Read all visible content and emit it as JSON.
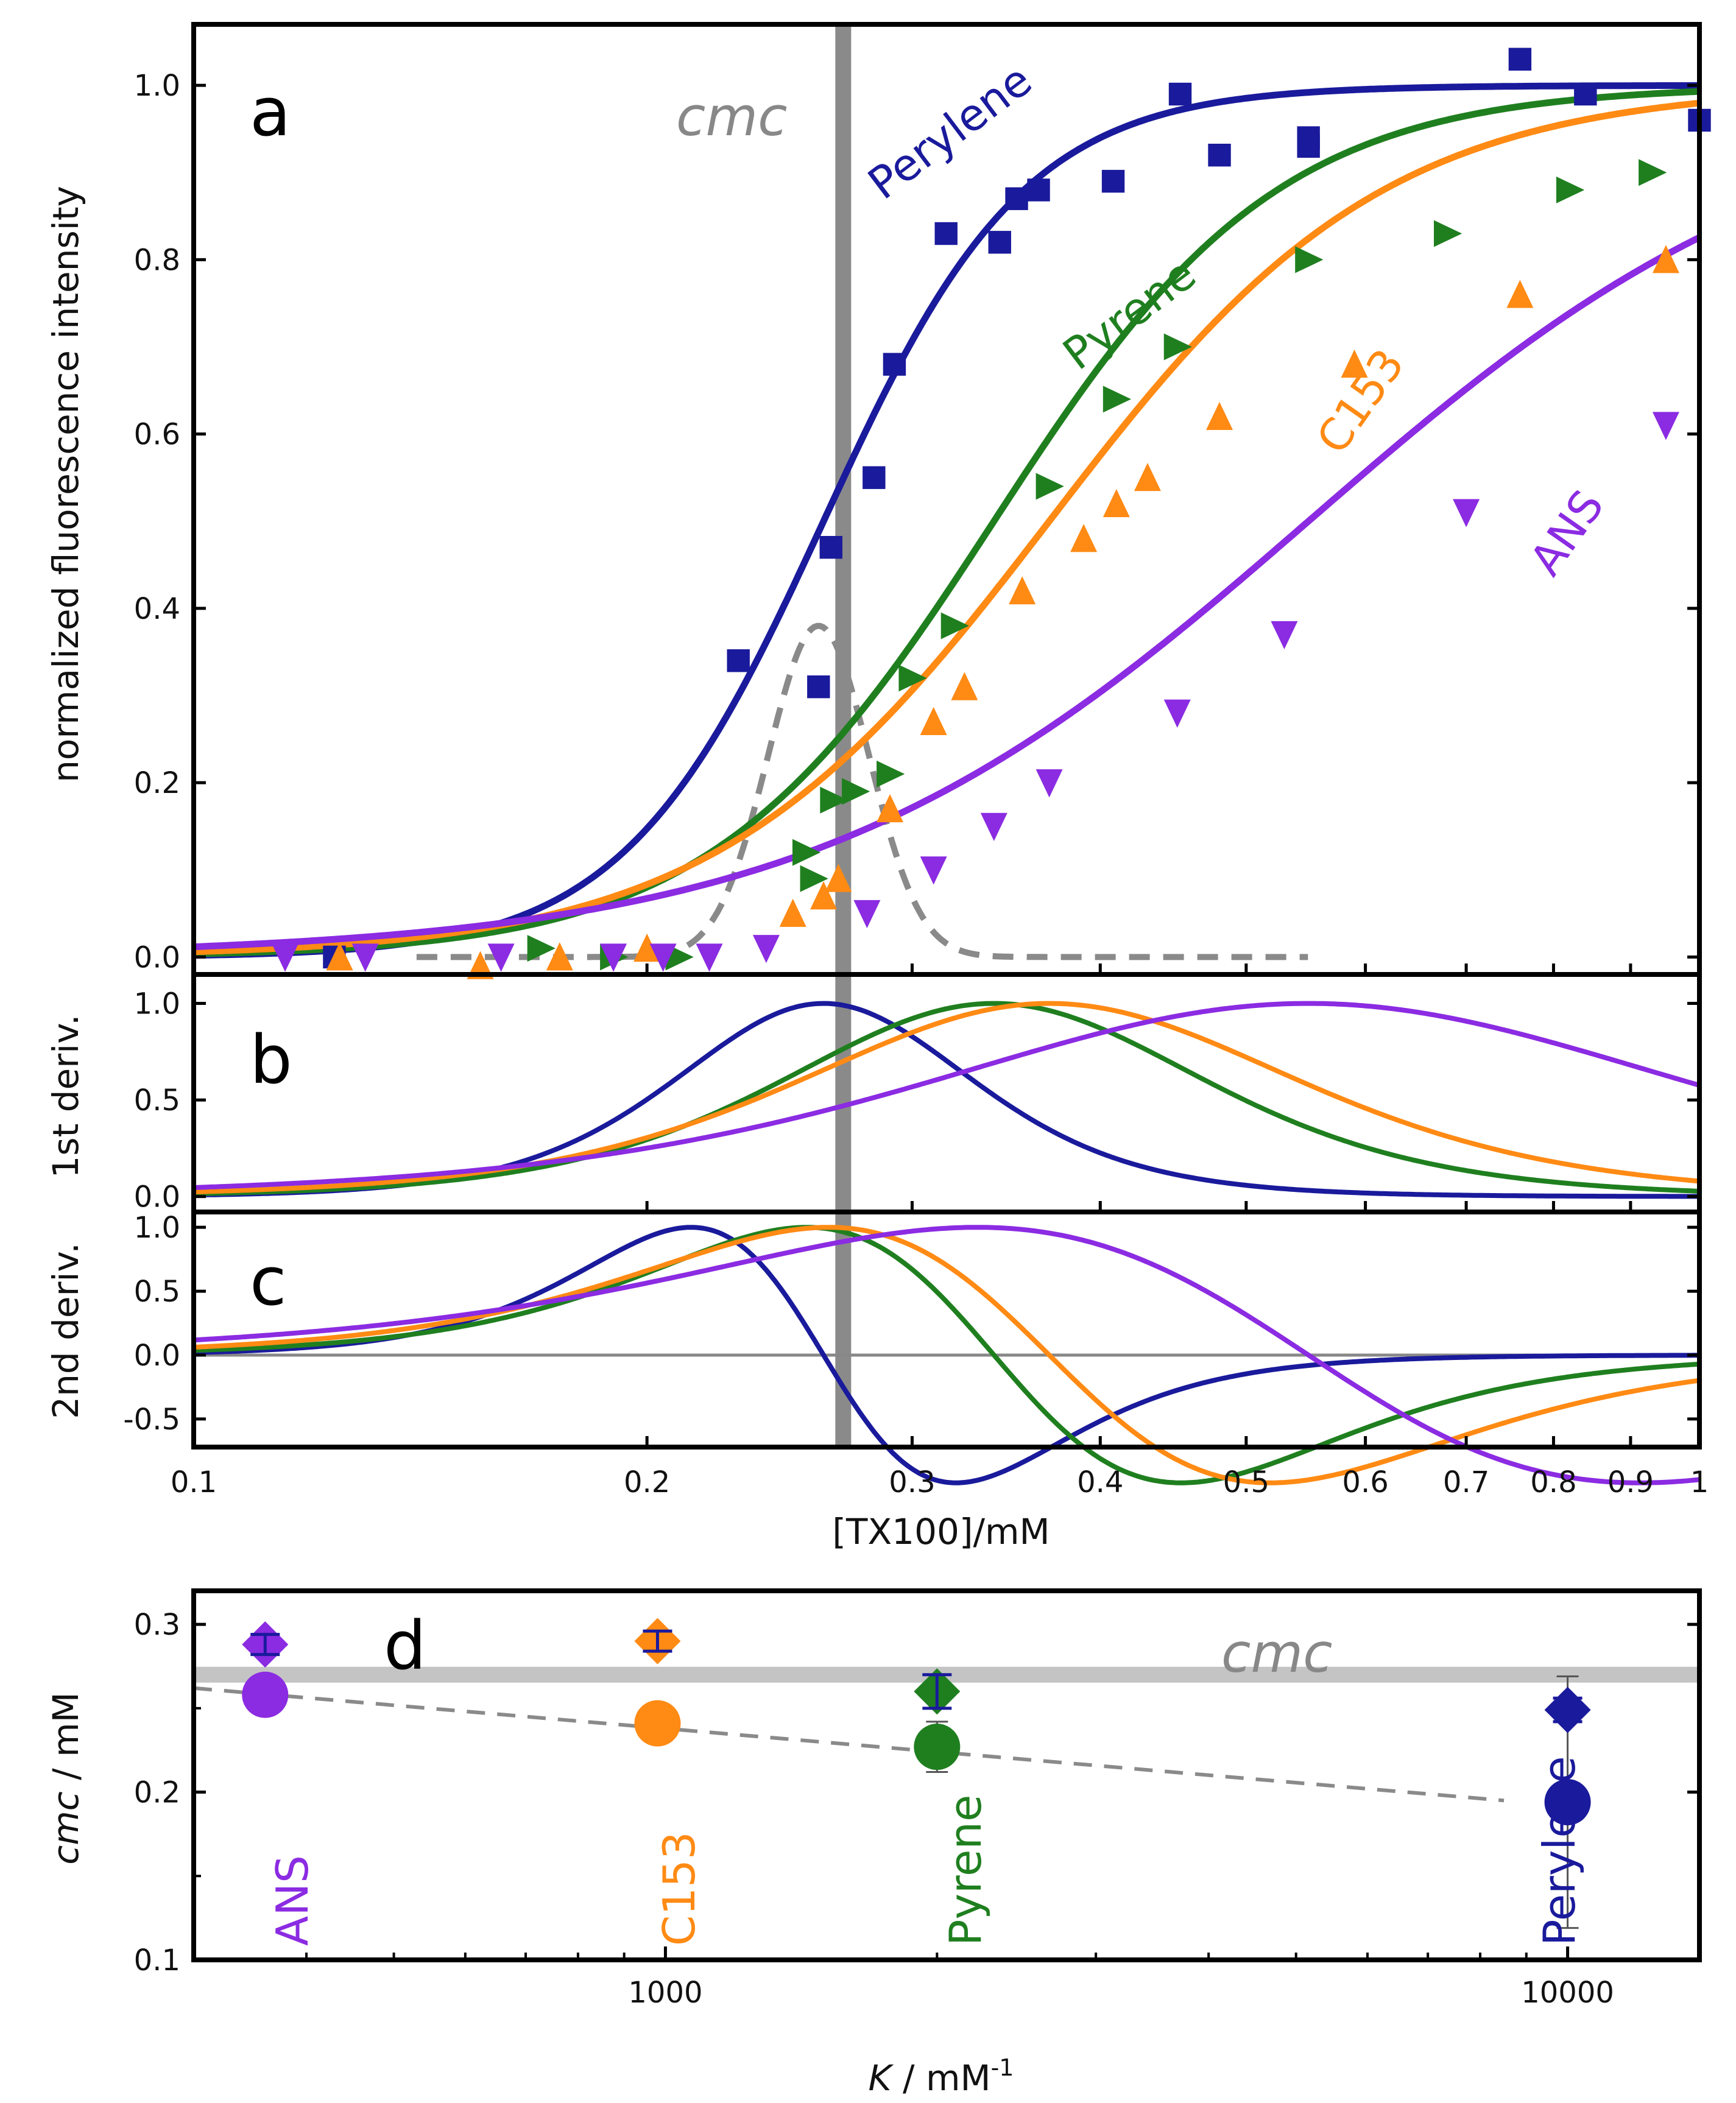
{
  "colors": {
    "Perylene": "#1a1a9c",
    "Pyrene": "#1f7f1f",
    "C153": "#ff8a14",
    "ANS": "#8b2be2",
    "cmc_line": "#8a8a8a",
    "cmc_band": "#c4c4c4",
    "dashed": "#8a8a8a"
  },
  "chart_data": [
    {
      "panel": "a",
      "type": "scatter",
      "x_scale": "log",
      "xlim": [
        0.1,
        1
      ],
      "ylim": [
        -0.02,
        1.07
      ],
      "ylabel": "normalized fluorescence intensity",
      "y_ticks": [
        "0.0",
        "0.2",
        "0.4",
        "0.6",
        "0.8",
        "1.0"
      ],
      "cmc_label": "cmc",
      "cmc_value": 0.27,
      "series": [
        {
          "name": "Perylene",
          "label": "Perylene",
          "marker": "square",
          "fit": {
            "x0": 0.262,
            "p": 6.5
          },
          "points": [
            [
              0.124,
              0.0
            ],
            [
              0.23,
              0.34
            ],
            [
              0.26,
              0.31
            ],
            [
              0.265,
              0.47
            ],
            [
              0.283,
              0.55
            ],
            [
              0.292,
              0.68
            ],
            [
              0.316,
              0.83
            ],
            [
              0.343,
              0.82
            ],
            [
              0.352,
              0.87
            ],
            [
              0.364,
              0.88
            ],
            [
              0.408,
              0.89
            ],
            [
              0.452,
              0.99
            ],
            [
              0.48,
              0.92
            ],
            [
              0.55,
              0.93
            ],
            [
              0.55,
              0.94
            ],
            [
              0.76,
              1.03
            ],
            [
              0.84,
              0.99
            ],
            [
              1.0,
              0.96
            ]
          ]
        },
        {
          "name": "Pyrene",
          "label": "Pyrene",
          "marker": "triangle-right",
          "fit": {
            "x0": 0.34,
            "p": 4.6
          },
          "points": [
            [
              0.17,
              0.01
            ],
            [
              0.19,
              0.0
            ],
            [
              0.21,
              0.0
            ],
            [
              0.255,
              0.12
            ],
            [
              0.258,
              0.09
            ],
            [
              0.266,
              0.18
            ],
            [
              0.275,
              0.19
            ],
            [
              0.29,
              0.21
            ],
            [
              0.3,
              0.32
            ],
            [
              0.32,
              0.38
            ],
            [
              0.37,
              0.54
            ],
            [
              0.41,
              0.64
            ],
            [
              0.45,
              0.7
            ],
            [
              0.55,
              0.8
            ],
            [
              0.68,
              0.83
            ],
            [
              0.82,
              0.88
            ],
            [
              0.93,
              0.9
            ]
          ]
        },
        {
          "name": "C153",
          "label": "C153",
          "marker": "triangle-up",
          "fit": {
            "x0": 0.37,
            "p": 3.9
          },
          "points": [
            [
              0.125,
              0.0
            ],
            [
              0.155,
              -0.01
            ],
            [
              0.175,
              0.0
            ],
            [
              0.2,
              0.01
            ],
            [
              0.25,
              0.05
            ],
            [
              0.262,
              0.07
            ],
            [
              0.268,
              0.09
            ],
            [
              0.29,
              0.17
            ],
            [
              0.31,
              0.27
            ],
            [
              0.325,
              0.31
            ],
            [
              0.355,
              0.42
            ],
            [
              0.39,
              0.48
            ],
            [
              0.41,
              0.52
            ],
            [
              0.43,
              0.55
            ],
            [
              0.48,
              0.62
            ],
            [
              0.59,
              0.68
            ],
            [
              0.76,
              0.76
            ],
            [
              0.95,
              0.8
            ]
          ]
        },
        {
          "name": "ANS",
          "label": "ANS",
          "marker": "triangle-down",
          "fit": {
            "x0": 0.55,
            "p": 2.6
          },
          "points": [
            [
              0.115,
              0.0
            ],
            [
              0.13,
              0.0
            ],
            [
              0.16,
              0.0
            ],
            [
              0.19,
              0.0
            ],
            [
              0.205,
              0.0
            ],
            [
              0.22,
              0.0
            ],
            [
              0.24,
              0.01
            ],
            [
              0.28,
              0.05
            ],
            [
              0.31,
              0.1
            ],
            [
              0.34,
              0.15
            ],
            [
              0.37,
              0.2
            ],
            [
              0.45,
              0.28
            ],
            [
              0.53,
              0.37
            ],
            [
              0.7,
              0.51
            ],
            [
              0.95,
              0.61
            ]
          ]
        }
      ],
      "dashed_curve": {
        "peak": 0.38,
        "center": 0.26,
        "width": 0.17,
        "xmin": 0.14,
        "xmax": 0.55
      }
    },
    {
      "panel": "b",
      "type": "line",
      "x_scale": "log",
      "xlim": [
        0.1,
        1
      ],
      "ylim": [
        -0.08,
        1.15
      ],
      "ylabel": "1st deriv.",
      "y_ticks": [
        "0.0",
        "0.5",
        "1.0"
      ],
      "series": [
        "Perylene",
        "Pyrene",
        "C153",
        "ANS"
      ]
    },
    {
      "panel": "c",
      "type": "line",
      "x_scale": "log",
      "xlim": [
        0.1,
        1
      ],
      "ylim": [
        -0.72,
        1.12
      ],
      "ylabel": "2nd deriv.",
      "y_ticks": [
        "-0.5",
        "0.0",
        "0.5",
        "1.0"
      ],
      "x_ticks": [
        "0.1",
        "0.2",
        "0.3",
        "0.4",
        "0.5",
        "0.6",
        "0.7",
        "0.8",
        "0.9",
        "1"
      ],
      "xlabel": "[TX100]/mM",
      "series": [
        "Perylene",
        "Pyrene",
        "C153",
        "ANS"
      ]
    },
    {
      "panel": "d",
      "type": "scatter",
      "x_scale": "log",
      "xlim": [
        300,
        14000
      ],
      "ylim": [
        0.1,
        0.32
      ],
      "xlabel_italic": "K",
      "xlabel_rest": " / mM",
      "xlabel_sup": "-1",
      "ylabel_italic": "cmc",
      "ylabel_rest": " / mM",
      "x_ticks": [
        "1000",
        "10000"
      ],
      "y_ticks": [
        "0.1",
        "0.2",
        "0.3"
      ],
      "cmc_label": "cmc",
      "cmc_value": 0.27,
      "trend_line": [
        [
          300,
          0.262
        ],
        [
          8500,
          0.195
        ]
      ],
      "points": [
        {
          "name": "ANS",
          "label": "ANS",
          "K": 360,
          "diamond": 0.288,
          "diamond_err": 0.006,
          "circle": 0.258,
          "circle_err": 0.0
        },
        {
          "name": "C153",
          "label": "C153",
          "K": 980,
          "diamond": 0.29,
          "diamond_err": 0.006,
          "circle": 0.241,
          "circle_err": 0.008
        },
        {
          "name": "Pyrene",
          "label": "Pyrene",
          "K": 2000,
          "diamond": 0.26,
          "diamond_err": 0.01,
          "circle": 0.227,
          "circle_err": 0.015
        },
        {
          "name": "Perylene",
          "label": "Perylene",
          "K": 10000,
          "diamond": 0.249,
          "diamond_err": 0.007,
          "circle": 0.194,
          "circle_err": 0.075
        }
      ]
    }
  ]
}
